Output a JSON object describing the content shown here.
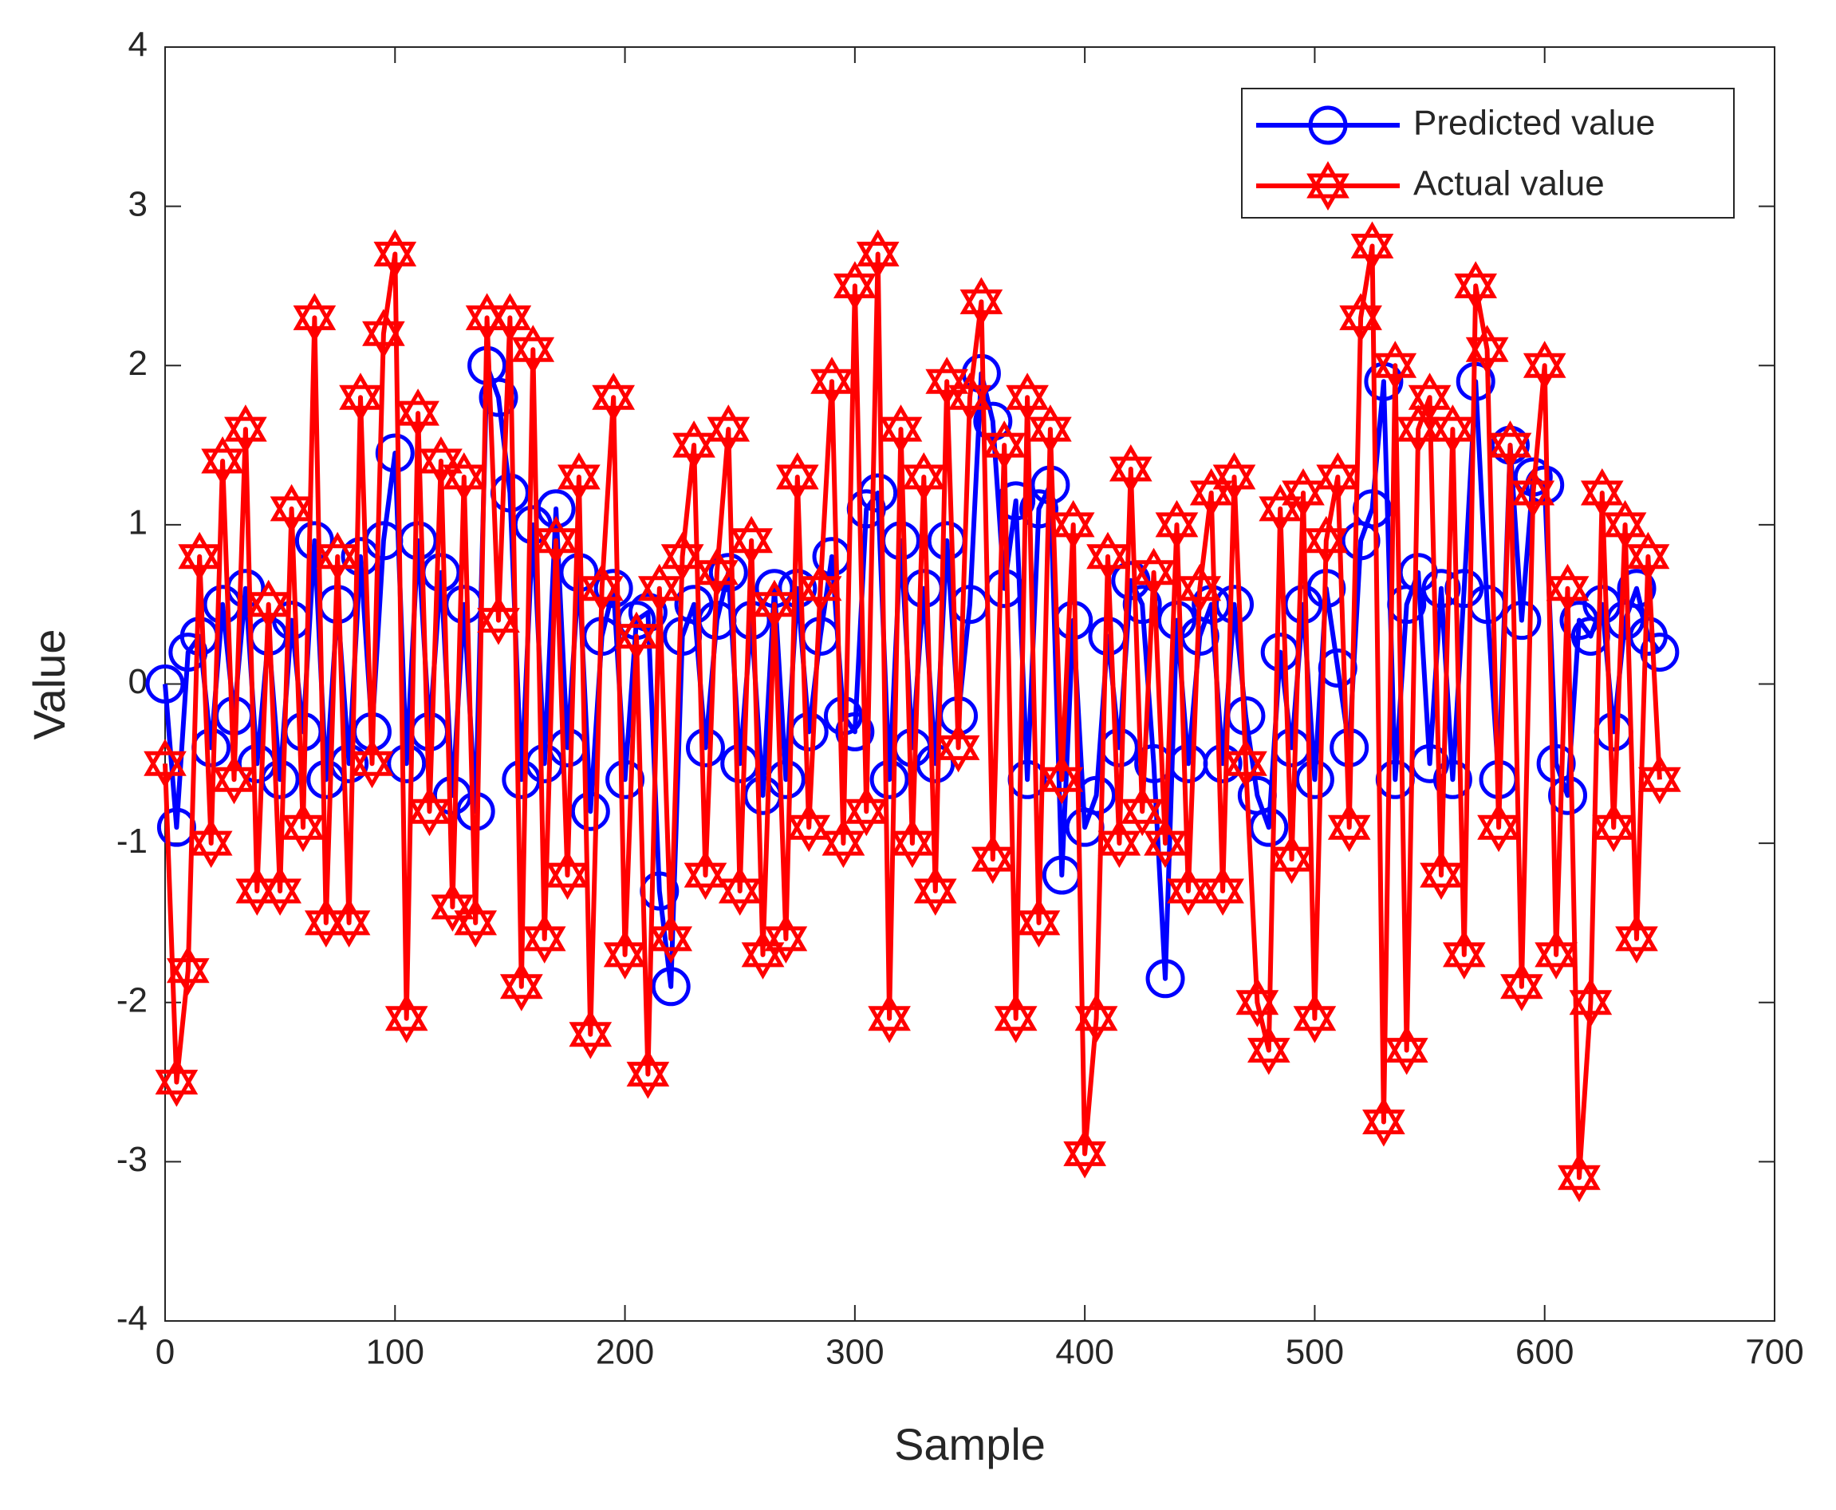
{
  "chart_data": {
    "type": "line",
    "xlabel": "Sample",
    "ylabel": "Value",
    "x": [
      0,
      5,
      10,
      15,
      20,
      25,
      30,
      35,
      40,
      45,
      50,
      55,
      60,
      65,
      70,
      75,
      80,
      85,
      90,
      95,
      100,
      105,
      110,
      115,
      120,
      125,
      130,
      135,
      140,
      145,
      150,
      155,
      160,
      165,
      170,
      175,
      180,
      185,
      190,
      195,
      200,
      205,
      210,
      215,
      220,
      225,
      230,
      235,
      240,
      245,
      250,
      255,
      260,
      265,
      270,
      275,
      280,
      285,
      290,
      295,
      300,
      305,
      310,
      315,
      320,
      325,
      330,
      335,
      340,
      345,
      350,
      355,
      360,
      365,
      370,
      375,
      380,
      385,
      390,
      395,
      400,
      405,
      410,
      415,
      420,
      425,
      430,
      435,
      440,
      445,
      450,
      455,
      460,
      465,
      470,
      475,
      480,
      485,
      490,
      495,
      500,
      505,
      510,
      515,
      520,
      525,
      530,
      535,
      540,
      545,
      550,
      555,
      560,
      565,
      570,
      575,
      580,
      585,
      590,
      595,
      600,
      605,
      610,
      615,
      620,
      625,
      630,
      635,
      640,
      645,
      650
    ],
    "series": [
      {
        "name": "Predicted value",
        "color": "#0000ff",
        "marker": "circle",
        "values": [
          0.0,
          -0.9,
          0.2,
          0.3,
          -0.4,
          0.5,
          -0.2,
          0.6,
          -0.5,
          0.3,
          -0.6,
          0.4,
          -0.3,
          0.9,
          -0.6,
          0.5,
          -0.5,
          0.8,
          -0.3,
          0.9,
          1.45,
          -0.5,
          0.9,
          -0.3,
          0.7,
          -0.7,
          0.5,
          -0.8,
          2.0,
          1.8,
          1.2,
          -0.6,
          1.0,
          -0.5,
          1.1,
          -0.4,
          0.7,
          -0.8,
          0.3,
          0.6,
          -0.6,
          0.4,
          0.45,
          -1.3,
          -1.9,
          0.3,
          0.5,
          -0.4,
          0.4,
          0.7,
          -0.5,
          0.4,
          -0.7,
          0.6,
          -0.6,
          0.6,
          -0.3,
          0.3,
          0.8,
          -0.2,
          -0.3,
          1.1,
          1.2,
          -0.6,
          0.9,
          -0.4,
          0.6,
          -0.5,
          0.9,
          -0.2,
          0.5,
          1.95,
          1.65,
          0.6,
          1.15,
          -0.6,
          1.1,
          1.25,
          -1.2,
          0.4,
          -0.9,
          -0.7,
          0.3,
          -0.4,
          0.65,
          0.5,
          -0.5,
          -1.85,
          0.4,
          -0.5,
          0.3,
          0.5,
          -0.5,
          0.5,
          -0.2,
          -0.7,
          -0.9,
          0.2,
          -0.4,
          0.5,
          -0.6,
          0.6,
          0.1,
          -0.4,
          0.9,
          1.1,
          1.9,
          -0.6,
          0.5,
          0.7,
          -0.5,
          0.6,
          -0.6,
          0.6,
          1.9,
          0.5,
          -0.6,
          1.5,
          0.4,
          1.3,
          1.25,
          -0.5,
          -0.7,
          0.4,
          0.3,
          0.5,
          -0.3,
          0.4,
          0.6,
          0.3,
          0.2
        ]
      },
      {
        "name": "Actual value",
        "color": "#ff0000",
        "marker": "hexagram",
        "values": [
          -0.5,
          -2.5,
          -1.8,
          0.8,
          -1.0,
          1.4,
          -0.6,
          1.6,
          -1.3,
          0.5,
          -1.3,
          1.1,
          -0.9,
          2.3,
          -1.5,
          0.8,
          -1.5,
          1.8,
          -0.5,
          2.2,
          2.7,
          -2.1,
          1.7,
          -0.8,
          1.4,
          -1.4,
          1.3,
          -1.5,
          2.3,
          0.4,
          2.3,
          -1.9,
          2.1,
          -1.6,
          0.9,
          -1.2,
          1.3,
          -2.2,
          0.6,
          1.8,
          -1.7,
          0.3,
          -2.45,
          0.6,
          -1.6,
          0.8,
          1.5,
          -1.2,
          0.7,
          1.6,
          -1.3,
          0.9,
          -1.7,
          0.5,
          -1.6,
          1.3,
          -0.9,
          0.6,
          1.9,
          -1.0,
          2.5,
          -0.8,
          2.7,
          -2.1,
          1.6,
          -1.0,
          1.3,
          -1.3,
          1.9,
          -0.4,
          1.8,
          2.4,
          -1.1,
          1.5,
          -2.1,
          1.8,
          -1.5,
          1.6,
          -0.6,
          1.0,
          -2.95,
          -2.1,
          0.8,
          -1.0,
          1.35,
          -0.8,
          0.7,
          -1.0,
          1.0,
          -1.3,
          0.6,
          1.2,
          -1.3,
          1.3,
          -0.5,
          -2.0,
          -2.3,
          1.1,
          -1.1,
          1.2,
          -2.1,
          0.9,
          1.3,
          -0.9,
          2.3,
          2.75,
          -2.75,
          2.0,
          -2.3,
          1.6,
          1.8,
          -1.2,
          1.6,
          -1.7,
          2.5,
          2.1,
          -0.9,
          1.5,
          -1.9,
          1.2,
          2.0,
          -1.7,
          0.6,
          -3.1,
          -2.0,
          1.2,
          -0.9,
          1.0,
          -1.6,
          0.8,
          -0.6
        ]
      }
    ],
    "xlim": [
      0,
      700
    ],
    "xticks": [
      0,
      100,
      200,
      300,
      400,
      500,
      600,
      700
    ],
    "ylim": [
      -4,
      4
    ],
    "yticks": [
      -4,
      -3,
      -2,
      -1,
      0,
      1,
      2,
      3,
      4
    ],
    "grid": false,
    "legend": "northeast"
  }
}
